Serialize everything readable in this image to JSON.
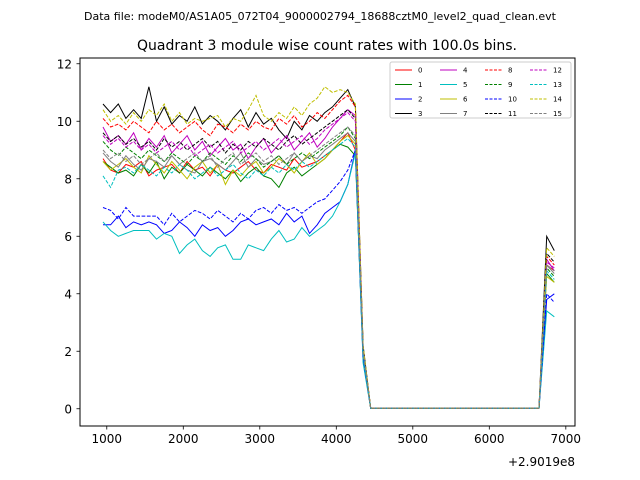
{
  "suptitle": "Data file: modeM0/AS1A05_072T04_9000002794_18688cztM0_level2_quad_clean.evt",
  "chart_data": {
    "type": "line",
    "title": "Quadrant 3 module wise count rates with 100.0s bins.",
    "xlabel": "",
    "ylabel": "",
    "x_offset_label": "+2.9019e8",
    "xlim": [
      650,
      7120
    ],
    "ylim": [
      -0.6,
      12.2
    ],
    "xticks": [
      1000,
      2000,
      3000,
      4000,
      5000,
      6000,
      7000
    ],
    "yticks": [
      0,
      2,
      4,
      6,
      8,
      10,
      12
    ],
    "legend_position": "upper right",
    "x": [
      950,
      1050,
      1150,
      1250,
      1350,
      1450,
      1550,
      1650,
      1750,
      1850,
      1950,
      2050,
      2150,
      2250,
      2350,
      2450,
      2550,
      2650,
      2750,
      2850,
      2950,
      3050,
      3150,
      3250,
      3350,
      3450,
      3550,
      3650,
      3750,
      3850,
      3950,
      4050,
      4150,
      4250,
      4350,
      4450,
      4550,
      6650,
      6750,
      6850
    ],
    "series": [
      {
        "name": "0",
        "color": "#ff0000",
        "dash": "solid",
        "values": [
          8.7,
          8.3,
          8.2,
          8.5,
          8.4,
          8.6,
          8.1,
          8.3,
          8.4,
          8.5,
          8.2,
          8.6,
          8.3,
          8.4,
          8.1,
          8.5,
          8.3,
          8.2,
          8.4,
          8.6,
          8.3,
          8.2,
          8.5,
          8.4,
          8.3,
          8.7,
          8.4,
          8.5,
          8.6,
          8.8,
          9.0,
          9.3,
          9.6,
          9.0,
          1.9,
          0.02,
          0.02,
          0.02,
          5.0,
          4.8
        ]
      },
      {
        "name": "1",
        "color": "#008000",
        "dash": "solid",
        "values": [
          8.6,
          8.4,
          8.2,
          8.3,
          8.1,
          8.5,
          8.2,
          8.6,
          8.0,
          8.4,
          8.2,
          8.5,
          8.3,
          8.1,
          8.4,
          8.2,
          8.0,
          8.3,
          7.9,
          8.2,
          8.4,
          8.1,
          8.0,
          7.7,
          8.2,
          8.4,
          8.1,
          8.3,
          8.5,
          8.7,
          9.0,
          9.2,
          9.1,
          8.8,
          1.8,
          0.02,
          0.02,
          0.02,
          4.7,
          4.4
        ]
      },
      {
        "name": "2",
        "color": "#0000ff",
        "dash": "solid",
        "values": [
          6.4,
          6.4,
          6.7,
          6.3,
          6.5,
          6.4,
          6.5,
          6.4,
          6.1,
          6.2,
          6.5,
          6.3,
          6.0,
          6.4,
          6.2,
          6.3,
          6.0,
          6.2,
          6.5,
          6.6,
          6.4,
          6.5,
          6.6,
          6.4,
          6.8,
          6.5,
          6.7,
          6.1,
          6.4,
          6.8,
          7.0,
          7.2,
          7.8,
          9.0,
          1.7,
          0.02,
          0.02,
          0.02,
          3.8,
          4.0
        ]
      },
      {
        "name": "3",
        "color": "#000000",
        "dash": "solid",
        "values": [
          10.6,
          10.3,
          10.6,
          10.1,
          10.4,
          10.1,
          11.2,
          10.0,
          10.5,
          9.9,
          10.2,
          10.0,
          10.5,
          9.9,
          10.2,
          10.0,
          9.7,
          10.1,
          10.4,
          9.8,
          10.3,
          9.9,
          10.1,
          9.7,
          9.4,
          10.0,
          9.7,
          10.2,
          10.0,
          10.3,
          10.5,
          10.8,
          11.1,
          10.5,
          2.2,
          0.02,
          0.02,
          0.02,
          6.0,
          5.5
        ]
      },
      {
        "name": "4",
        "color": "#bf00bf",
        "dash": "solid",
        "values": [
          9.8,
          9.3,
          9.5,
          9.2,
          9.6,
          9.0,
          9.4,
          9.1,
          9.5,
          8.9,
          9.2,
          9.5,
          9.0,
          9.3,
          8.8,
          9.1,
          9.4,
          9.0,
          9.2,
          8.7,
          9.1,
          9.4,
          8.9,
          9.2,
          9.5,
          9.0,
          9.3,
          9.6,
          9.1,
          9.4,
          9.8,
          10.1,
          10.4,
          10.2,
          2.0,
          0.02,
          0.02,
          0.02,
          5.2,
          4.8
        ]
      },
      {
        "name": "5",
        "color": "#00bfbf",
        "dash": "solid",
        "values": [
          6.5,
          6.2,
          6.0,
          6.1,
          6.2,
          6.2,
          6.2,
          5.9,
          6.1,
          6.0,
          5.4,
          5.7,
          5.9,
          5.5,
          5.3,
          5.6,
          5.7,
          5.2,
          5.2,
          5.7,
          5.6,
          5.5,
          5.9,
          6.2,
          5.8,
          5.9,
          6.3,
          6.0,
          6.2,
          6.4,
          6.7,
          7.2,
          7.8,
          8.9,
          1.6,
          0.02,
          0.02,
          0.02,
          3.4,
          3.2
        ]
      },
      {
        "name": "6",
        "color": "#bfbf00",
        "dash": "solid",
        "values": [
          8.6,
          8.3,
          8.5,
          8.7,
          8.4,
          8.2,
          8.8,
          8.5,
          8.2,
          8.6,
          8.3,
          8.0,
          8.4,
          8.6,
          8.2,
          8.5,
          7.8,
          8.3,
          8.1,
          8.4,
          8.6,
          8.2,
          8.4,
          8.7,
          8.5,
          8.2,
          8.6,
          8.9,
          8.5,
          8.7,
          9.0,
          9.3,
          9.5,
          9.2,
          1.9,
          0.02,
          0.02,
          0.02,
          4.6,
          4.4
        ]
      },
      {
        "name": "7",
        "color": "#808080",
        "dash": "solid",
        "values": [
          8.9,
          8.6,
          8.4,
          8.8,
          8.5,
          8.3,
          8.7,
          8.6,
          8.4,
          8.8,
          8.5,
          8.3,
          8.2,
          8.6,
          8.7,
          8.5,
          8.3,
          8.6,
          8.9,
          8.4,
          8.7,
          8.5,
          8.6,
          8.8,
          8.5,
          8.9,
          8.6,
          8.8,
          8.7,
          9.0,
          9.2,
          9.4,
          9.6,
          9.3,
          2.0,
          0.02,
          0.02,
          0.02,
          5.0,
          4.7
        ]
      },
      {
        "name": "8",
        "color": "#ff0000",
        "dash": "dashed",
        "values": [
          10.1,
          9.8,
          9.9,
          9.7,
          10.0,
          9.8,
          9.6,
          10.0,
          9.7,
          9.9,
          9.6,
          9.8,
          10.0,
          9.7,
          9.5,
          9.9,
          9.8,
          9.6,
          9.9,
          9.7,
          10.0,
          9.8,
          9.7,
          10.1,
          9.9,
          10.2,
          9.8,
          10.0,
          10.3,
          10.1,
          10.4,
          10.7,
          10.9,
          10.5,
          2.1,
          0.02,
          0.02,
          0.02,
          5.3,
          5.0
        ]
      },
      {
        "name": "9",
        "color": "#008000",
        "dash": "dashed",
        "values": [
          9.3,
          9.0,
          8.8,
          9.1,
          8.9,
          8.7,
          9.0,
          8.8,
          8.6,
          8.9,
          8.7,
          8.5,
          8.8,
          8.6,
          8.9,
          8.7,
          8.5,
          8.8,
          8.6,
          8.9,
          8.7,
          8.4,
          8.6,
          8.8,
          8.5,
          8.7,
          8.9,
          8.7,
          8.9,
          9.1,
          9.3,
          9.5,
          9.8,
          9.4,
          2.0,
          0.02,
          0.02,
          0.02,
          4.9,
          4.6
        ]
      },
      {
        "name": "10",
        "color": "#0000ff",
        "dash": "dashed",
        "values": [
          7.0,
          6.9,
          6.6,
          7.0,
          6.7,
          6.7,
          6.7,
          6.7,
          6.4,
          6.8,
          6.5,
          6.7,
          6.9,
          6.8,
          6.6,
          6.9,
          6.7,
          6.5,
          6.8,
          6.6,
          6.9,
          7.0,
          6.8,
          7.1,
          6.9,
          7.0,
          6.8,
          7.0,
          7.2,
          7.3,
          7.6,
          7.9,
          8.3,
          9.0,
          1.8,
          0.02,
          0.02,
          0.02,
          4.0,
          3.7
        ]
      },
      {
        "name": "11",
        "color": "#000000",
        "dash": "dashed",
        "values": [
          9.6,
          9.3,
          9.5,
          9.2,
          9.4,
          9.1,
          9.3,
          9.0,
          9.4,
          9.1,
          9.3,
          9.0,
          9.2,
          9.4,
          9.1,
          9.3,
          8.9,
          9.2,
          9.0,
          9.3,
          9.1,
          9.4,
          9.2,
          9.0,
          9.3,
          9.5,
          9.2,
          9.4,
          9.6,
          9.8,
          10.0,
          10.2,
          10.4,
          10.1,
          2.1,
          0.02,
          0.02,
          0.02,
          5.4,
          5.1
        ]
      },
      {
        "name": "12",
        "color": "#bf00bf",
        "dash": "dashed",
        "values": [
          9.5,
          9.2,
          9.4,
          9.1,
          9.3,
          9.0,
          9.2,
          8.9,
          9.1,
          9.3,
          9.0,
          9.2,
          8.8,
          9.0,
          9.2,
          8.9,
          9.1,
          9.3,
          8.9,
          9.1,
          9.3,
          9.0,
          9.2,
          9.4,
          9.1,
          9.3,
          9.5,
          9.2,
          9.4,
          9.7,
          9.9,
          10.1,
          10.3,
          10.0,
          2.0,
          0.02,
          0.02,
          0.02,
          5.1,
          4.9
        ]
      },
      {
        "name": "13",
        "color": "#00bfbf",
        "dash": "dashed",
        "values": [
          8.1,
          7.7,
          8.3,
          8.4,
          8.2,
          8.5,
          8.3,
          8.1,
          8.4,
          8.2,
          8.5,
          8.3,
          8.0,
          8.2,
          8.4,
          8.1,
          8.3,
          8.5,
          8.2,
          8.0,
          8.3,
          8.1,
          8.4,
          8.2,
          8.5,
          8.3,
          8.6,
          8.4,
          8.6,
          8.8,
          9.0,
          9.2,
          9.4,
          9.1,
          1.9,
          0.02,
          0.02,
          0.02,
          4.8,
          4.5
        ]
      },
      {
        "name": "14",
        "color": "#bfbf00",
        "dash": "dashed",
        "values": [
          10.4,
          10.0,
          10.2,
          9.9,
          10.3,
          10.0,
          10.4,
          10.2,
          10.6,
          10.0,
          10.3,
          9.9,
          10.1,
          10.0,
          10.1,
          10.2,
          9.8,
          10.1,
          10.0,
          10.4,
          10.9,
          10.2,
          10.0,
          10.3,
          10.1,
          10.5,
          10.2,
          10.6,
          10.8,
          11.2,
          11.0,
          11.1,
          11.0,
          10.6,
          2.2,
          0.02,
          0.02,
          0.02,
          5.6,
          5.3
        ]
      },
      {
        "name": "15",
        "color": "#808080",
        "dash": "dashed",
        "values": [
          9.0,
          8.7,
          8.9,
          8.6,
          8.8,
          8.5,
          8.7,
          8.9,
          8.6,
          8.8,
          8.5,
          8.7,
          8.9,
          8.6,
          8.8,
          8.4,
          8.7,
          8.9,
          8.5,
          8.7,
          8.9,
          8.6,
          8.8,
          8.5,
          8.7,
          8.9,
          8.6,
          8.8,
          9.0,
          9.2,
          9.4,
          9.6,
          9.8,
          9.5,
          2.0,
          0.02,
          0.02,
          0.02,
          5.0,
          4.8
        ]
      }
    ]
  }
}
